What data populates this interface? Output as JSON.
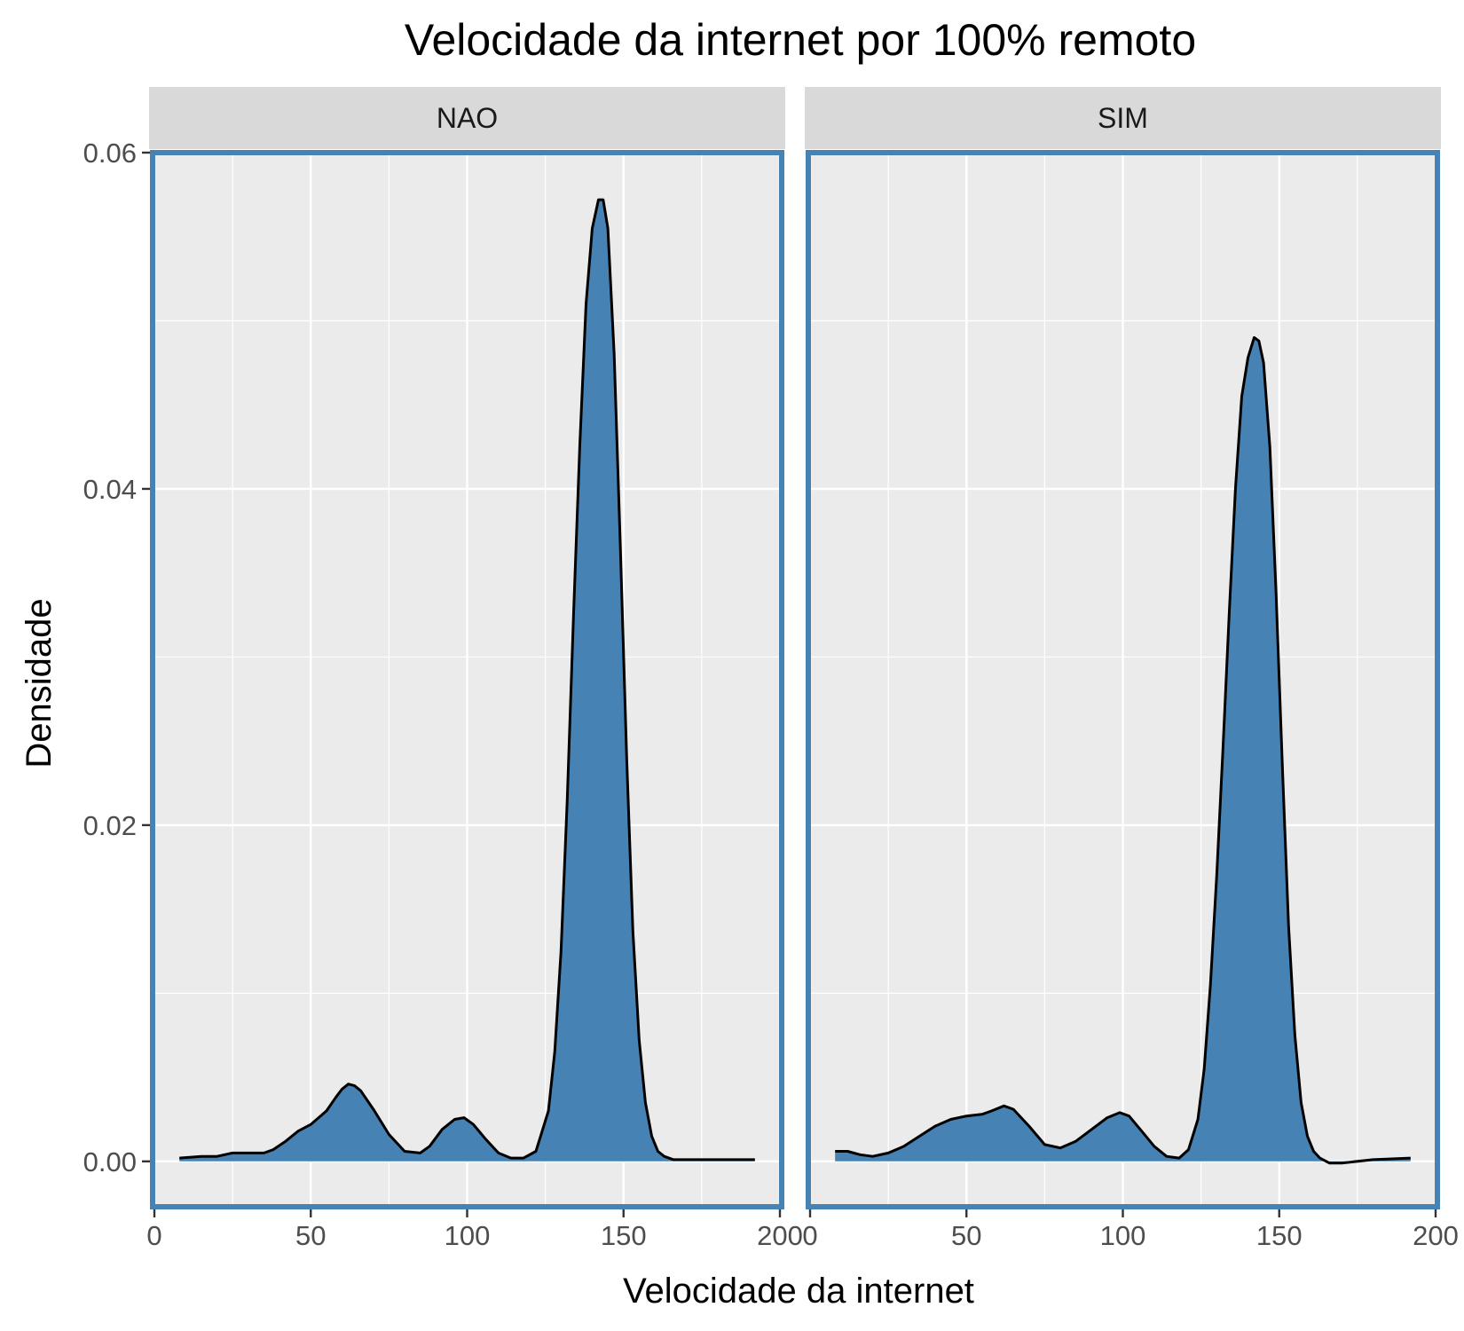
{
  "chart_data": {
    "type": "area",
    "title": "Velocidade da internet por 100% remoto",
    "xlabel": "Velocidade da internet",
    "ylabel": "Densidade",
    "xlim": [
      0,
      200
    ],
    "ylim": [
      -0.0027,
      0.06
    ],
    "x_ticks": [
      0,
      50,
      100,
      150,
      200
    ],
    "x_tick_labels": [
      "0",
      "50",
      "100",
      "150",
      "200"
    ],
    "y_ticks": [
      0,
      0.02,
      0.04,
      0.06
    ],
    "y_tick_labels": [
      "0.00",
      "0.02",
      "0.04",
      "0.06"
    ],
    "grid": true,
    "colors": {
      "fill": "#4682B4",
      "outline": "#000000",
      "panel_border": "#4682B4",
      "panel_background": "#EBEBEB",
      "strip_background": "#D9D9D9",
      "grid": "#FFFFFF"
    },
    "panels": [
      {
        "label": "NAO",
        "x": [
          8,
          15,
          20,
          25,
          30,
          35,
          38,
          42,
          46,
          50,
          55,
          58,
          60,
          62,
          64,
          66,
          70,
          75,
          80,
          85,
          88,
          92,
          96,
          99,
          102,
          106,
          110,
          114,
          118,
          122,
          126,
          128,
          130,
          132,
          134,
          136,
          138,
          140,
          142,
          143.5,
          145,
          147,
          149,
          151,
          153,
          155,
          157,
          159,
          161,
          163,
          166,
          170,
          180,
          192
        ],
        "y": [
          0.0002,
          0.0003,
          0.0003,
          0.0005,
          0.0005,
          0.0005,
          0.0007,
          0.0012,
          0.0018,
          0.0022,
          0.003,
          0.0038,
          0.0043,
          0.0046,
          0.0045,
          0.0042,
          0.0031,
          0.0016,
          0.0006,
          0.0005,
          0.0009,
          0.0019,
          0.0025,
          0.0026,
          0.0022,
          0.0013,
          0.0005,
          0.0002,
          0.0002,
          0.0006,
          0.003,
          0.0065,
          0.0125,
          0.0215,
          0.0325,
          0.0425,
          0.051,
          0.0555,
          0.0572,
          0.0572,
          0.0555,
          0.048,
          0.0365,
          0.024,
          0.0137,
          0.0072,
          0.0035,
          0.0015,
          0.0006,
          0.0003,
          0.0001,
          0.0001,
          0.0001,
          0.0001
        ]
      },
      {
        "label": "SIM",
        "x": [
          8,
          12,
          16,
          20,
          25,
          30,
          35,
          40,
          45,
          50,
          55,
          58,
          62,
          65,
          70,
          75,
          80,
          85,
          90,
          95,
          99,
          102,
          106,
          110,
          114,
          118,
          121,
          124,
          126,
          128,
          130,
          132,
          134,
          136,
          138,
          140,
          142,
          143.5,
          145,
          147,
          149,
          151,
          153,
          155,
          157,
          159,
          161,
          163,
          166,
          170,
          180,
          192
        ],
        "y": [
          0.0006,
          0.0006,
          0.0004,
          0.0003,
          0.0005,
          0.0009,
          0.0015,
          0.0021,
          0.0025,
          0.0027,
          0.0028,
          0.003,
          0.0033,
          0.0031,
          0.0021,
          0.001,
          0.0008,
          0.0012,
          0.0019,
          0.0026,
          0.0029,
          0.0027,
          0.0018,
          0.0009,
          0.0003,
          0.0002,
          0.0007,
          0.0025,
          0.0055,
          0.0105,
          0.017,
          0.0245,
          0.0325,
          0.04,
          0.0455,
          0.0478,
          0.049,
          0.0488,
          0.0475,
          0.0425,
          0.0338,
          0.0235,
          0.014,
          0.0075,
          0.0035,
          0.0015,
          0.0006,
          0.0002,
          -0.0001,
          -0.0001,
          0.0001,
          0.0002
        ]
      }
    ]
  }
}
